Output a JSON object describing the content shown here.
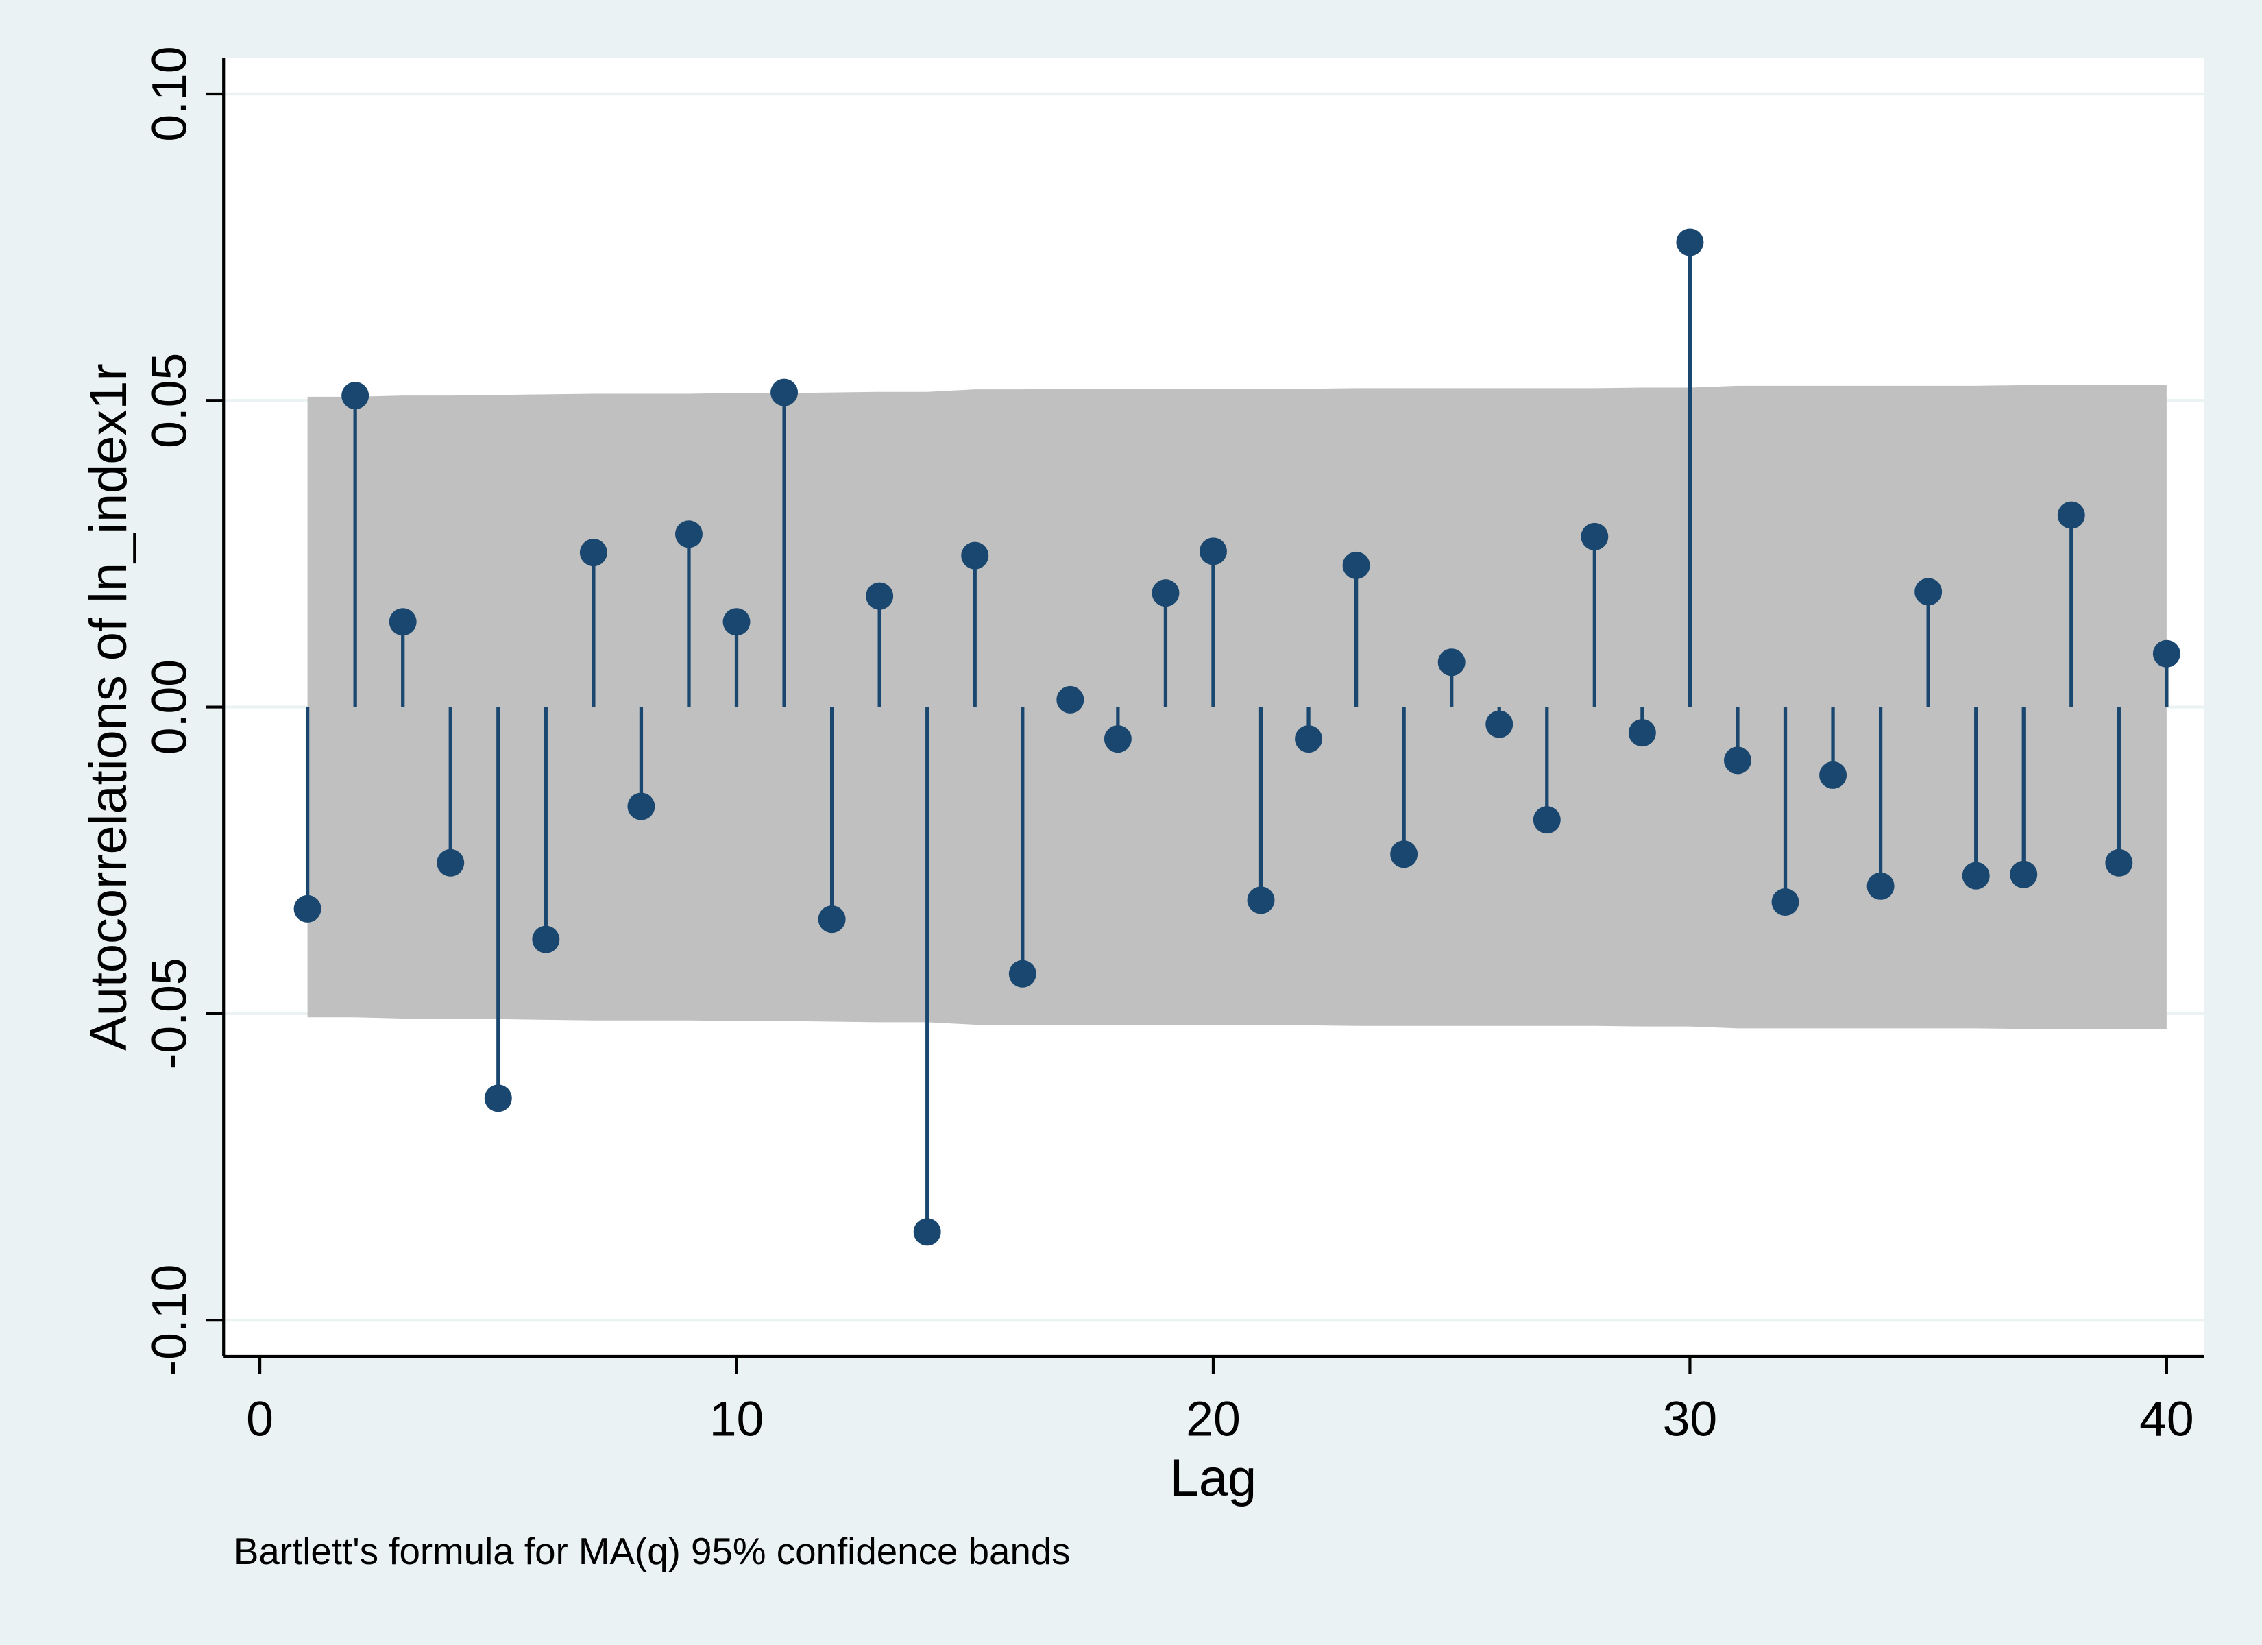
{
  "chart_data": {
    "type": "stem",
    "y_label": "Autocorrelations of ln_index1r",
    "x_label": "Lag",
    "note": "Bartlett's formula for MA(q) 95% confidence bands",
    "x": [
      1,
      2,
      3,
      4,
      5,
      6,
      7,
      8,
      9,
      10,
      11,
      12,
      13,
      14,
      15,
      16,
      17,
      18,
      19,
      20,
      21,
      22,
      23,
      24,
      25,
      26,
      27,
      28,
      29,
      30,
      31,
      32,
      33,
      34,
      35,
      36,
      37,
      38,
      39,
      40
    ],
    "values": [
      -0.0329,
      0.0508,
      0.0139,
      -0.0254,
      -0.0638,
      -0.0379,
      0.0252,
      -0.0162,
      0.0282,
      0.0139,
      0.0513,
      -0.0346,
      0.0181,
      -0.0856,
      0.0247,
      -0.0435,
      0.0012,
      -0.0052,
      0.0186,
      0.0254,
      -0.0315,
      -0.0052,
      0.0231,
      -0.024,
      0.0073,
      -0.0028,
      -0.0184,
      0.0278,
      -0.0042,
      0.0758,
      -0.0087,
      -0.0318,
      -0.0111,
      -0.0292,
      0.0188,
      -0.0275,
      -0.0273,
      0.0313,
      -0.0254,
      0.0087
    ],
    "color": "#1a476f",
    "ci_upper": [
      0.0506,
      0.0506,
      0.0508,
      0.0508,
      0.0509,
      0.051,
      0.0511,
      0.0511,
      0.0511,
      0.0512,
      0.0512,
      0.0513,
      0.0514,
      0.0514,
      0.0518,
      0.0518,
      0.0519,
      0.0519,
      0.0519,
      0.0519,
      0.0519,
      0.0519,
      0.052,
      0.052,
      0.052,
      0.052,
      0.052,
      0.052,
      0.0521,
      0.0521,
      0.0524,
      0.0524,
      0.0524,
      0.0524,
      0.0524,
      0.0524,
      0.0525,
      0.0525,
      0.0525,
      0.0525
    ],
    "ci_lower": [
      -0.0506,
      -0.0506,
      -0.0508,
      -0.0508,
      -0.0509,
      -0.051,
      -0.0511,
      -0.0511,
      -0.0511,
      -0.0512,
      -0.0512,
      -0.0513,
      -0.0514,
      -0.0514,
      -0.0518,
      -0.0518,
      -0.0519,
      -0.0519,
      -0.0519,
      -0.0519,
      -0.0519,
      -0.0519,
      -0.052,
      -0.052,
      -0.052,
      -0.052,
      -0.052,
      -0.052,
      -0.0521,
      -0.0521,
      -0.0524,
      -0.0524,
      -0.0524,
      -0.0524,
      -0.0524,
      -0.0524,
      -0.0525,
      -0.0525,
      -0.0525,
      -0.0525
    ],
    "band_color": "#c0c0c0",
    "xlim": [
      -0.76,
      40.79
    ],
    "ylim": [
      -0.1059,
      0.1059
    ],
    "xticks": [
      0,
      10,
      20,
      30,
      40
    ],
    "yticks": [
      {
        "value": -0.1,
        "label": "-0.10"
      },
      {
        "value": -0.05,
        "label": "-0.05"
      },
      {
        "value": 0,
        "label": "0.00"
      },
      {
        "value": 0.05,
        "label": "0.05"
      },
      {
        "value": 0.1,
        "label": "0.10"
      }
    ],
    "grid": true
  }
}
